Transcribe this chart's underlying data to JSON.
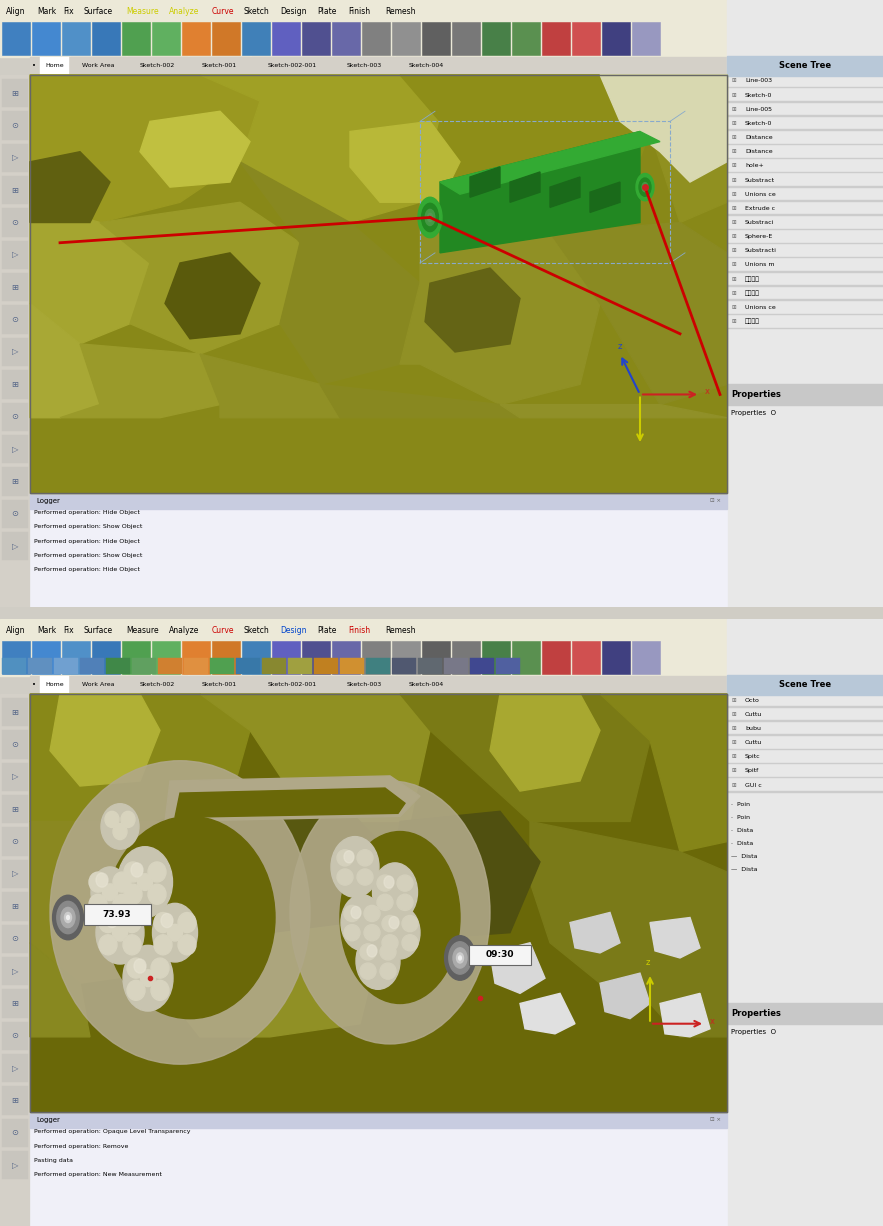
{
  "figure_width": 8.83,
  "figure_height": 12.26,
  "dpi": 100,
  "bg_color": "#d0cdc5",
  "panel1": {
    "menu_items": [
      "Align",
      "Mark",
      "Fix",
      "Surface",
      "Measure",
      "Analyze",
      "Curve",
      "Sketch",
      "Design",
      "Plate",
      "Finish",
      "Remesh"
    ],
    "menu_colors": [
      "#000000",
      "#000000",
      "#000000",
      "#000000",
      "#cccc00",
      "#cccc00",
      "#cc0000",
      "#000000",
      "#000000",
      "#000000",
      "#000000",
      "#000000"
    ],
    "tabs": [
      "Home",
      "Work Area",
      "Sketch-002",
      "Sketch-001",
      "Sketch-002-001",
      "Sketch-003",
      "Sketch-004"
    ],
    "scene_tree_items": [
      "Line-003",
      "Sketch-0",
      "Line-005",
      "Sketch-0",
      "Distance",
      "Distance",
      "hole+",
      "Substract",
      "Unions ce",
      "Extrude c",
      "Substraci",
      "Sphere-E",
      "Substracti",
      "Unions m",
      "정싘보드",
      "정합파드",
      "Unions ce",
      "정합모델"
    ],
    "logger_lines": [
      "Performed operation: Hide Object",
      "Performed operation: Show Object",
      "Performed operation: Hide Object",
      "Performed operation: Show Object",
      "Performed operation: Hide Object"
    ],
    "viewport_bg": "#9a9820",
    "skull_color": "#b0ae3a"
  },
  "panel2": {
    "menu_items": [
      "Align",
      "Mark",
      "Fix",
      "Surface",
      "Measure",
      "Analyze",
      "Curve",
      "Sketch",
      "Design",
      "Plate",
      "Finish",
      "Remesh"
    ],
    "menu_colors": [
      "#000000",
      "#000000",
      "#000000",
      "#000000",
      "#000000",
      "#000000",
      "#cc0000",
      "#000000",
      "#0044cc",
      "#000000",
      "#cc0000",
      "#000000"
    ],
    "tabs": [
      "Home",
      "Work Area",
      "Sketch-002",
      "Sketch-001",
      "Sketch-002-001",
      "Sketch-003",
      "Sketch-004"
    ],
    "scene_tree_items": [
      "Octo",
      "Cuttu",
      "bubu",
      "Cuttu",
      "Spitc",
      "Spitf",
      "GUI c"
    ],
    "scene_tree_items2": [
      "Poin",
      "Poin",
      "Dista",
      "Dista"
    ],
    "logger_lines": [
      "Performed operation: Opaque Level Transparency",
      "Performed operation: Remove",
      "Pasting data",
      "Performed operation: New Measurement"
    ],
    "measurement1": "73.93",
    "measurement2": "09:30",
    "viewport_bg": "#7a7a10"
  }
}
